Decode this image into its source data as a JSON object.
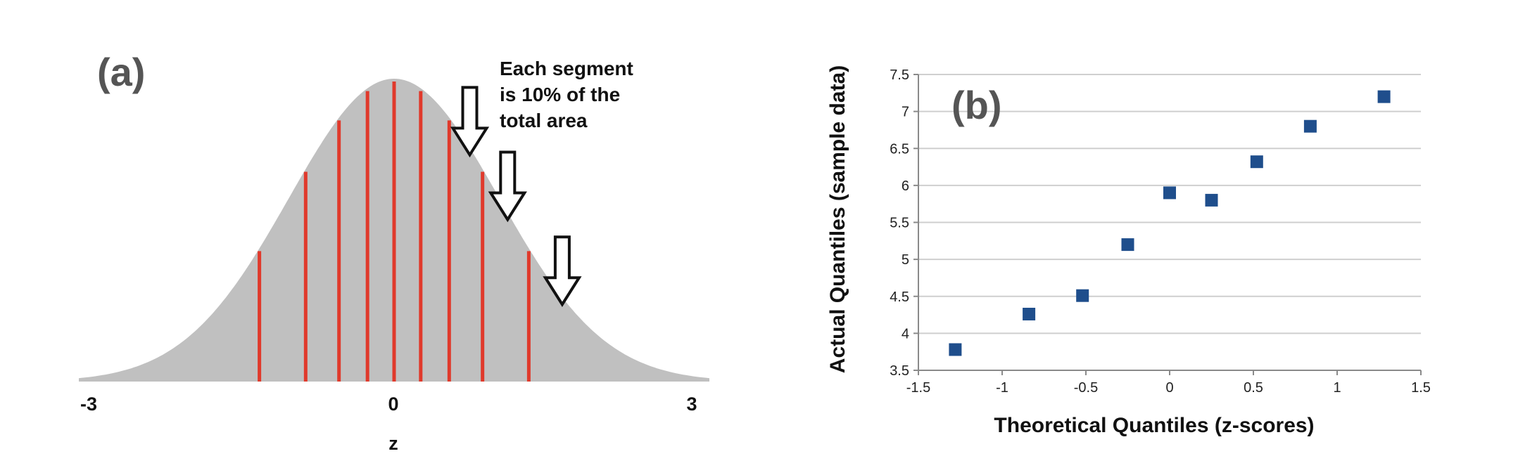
{
  "chart_data": [
    {
      "type": "area",
      "panel_label": "(a)",
      "curve": "standard normal density",
      "x_ticks": [
        "-3",
        "0",
        "3"
      ],
      "xlabel": "z",
      "xlim": [
        -3,
        3
      ],
      "annotation": [
        "Each segment",
        "is 10% of the",
        "total area"
      ],
      "decile_z": [
        -1.2816,
        -0.8416,
        -0.5244,
        -0.2533,
        0,
        0.2533,
        0.5244,
        0.8416,
        1.2816
      ],
      "arrow_z": [
        0.72,
        1.08,
        1.6
      ],
      "fill_color": "#c0c0c0",
      "line_color": "#e0392b",
      "grid": false
    },
    {
      "type": "scatter",
      "panel_label": "(b)",
      "xlabel": "Theoretical Quantiles (z-scores)",
      "ylabel": "Actual Quantiles (sample data)",
      "xlim": [
        -1.5,
        1.5
      ],
      "ylim": [
        3.5,
        7.5
      ],
      "x_ticks": [
        "-1.5",
        "-1",
        "-0.5",
        "0",
        "0.5",
        "1",
        "1.5"
      ],
      "y_ticks": [
        "3.5",
        "4",
        "4.5",
        "5",
        "5.5",
        "6",
        "6.5",
        "7",
        "7.5"
      ],
      "points": [
        {
          "x": -1.28,
          "y": 3.78
        },
        {
          "x": -0.84,
          "y": 4.26
        },
        {
          "x": -0.52,
          "y": 4.51
        },
        {
          "x": -0.25,
          "y": 5.2
        },
        {
          "x": 0.0,
          "y": 5.9
        },
        {
          "x": 0.25,
          "y": 5.8
        },
        {
          "x": 0.52,
          "y": 6.32
        },
        {
          "x": 0.84,
          "y": 6.8
        },
        {
          "x": 1.28,
          "y": 7.2
        }
      ],
      "marker": "square",
      "marker_color": "#1f4e8c",
      "grid": true
    }
  ]
}
